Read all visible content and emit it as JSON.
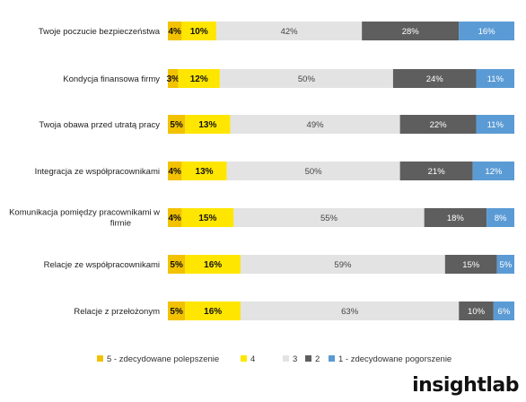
{
  "chart_data": {
    "type": "bar",
    "orientation": "horizontal",
    "stacked": true,
    "xlim": [
      0,
      100
    ],
    "legend_position": "bottom",
    "categories": [
      "Twoje poczucie bezpieczeństwa",
      "Kondycja finansowa firmy",
      "Twoja obawa przed utratą pracy",
      "Integracja ze współpracownikami",
      "Komunikacja pomiędzy pracownikami w firmie",
      "Relacje ze współpracownikami",
      "Relacje z przełożonym"
    ],
    "series": [
      {
        "name": "5 - zdecydowane polepszenie",
        "color": "#f2c200",
        "values": [
          4,
          3,
          5,
          4,
          4,
          5,
          5
        ]
      },
      {
        "name": "4",
        "color": "#ffe600",
        "values": [
          10,
          12,
          13,
          13,
          15,
          16,
          16
        ]
      },
      {
        "name": "3",
        "color": "#e3e3e3",
        "values": [
          42,
          50,
          49,
          50,
          55,
          59,
          63
        ]
      },
      {
        "name": "2",
        "color": "#5e5e5e",
        "values": [
          28,
          24,
          22,
          21,
          18,
          15,
          10
        ]
      },
      {
        "name": "1 - zdecydowane pogorszenie",
        "color": "#5b9bd5",
        "values": [
          16,
          11,
          11,
          12,
          8,
          5,
          6
        ]
      }
    ],
    "data_labels": [
      [
        "4%",
        "10%",
        "42%",
        "28%",
        "16%"
      ],
      [
        "3%",
        "12%",
        "50%",
        "24%",
        "11%"
      ],
      [
        "5%",
        "13%",
        "49%",
        "22%",
        "11%"
      ],
      [
        "4%",
        "13%",
        "50%",
        "21%",
        "12%"
      ],
      [
        "4%",
        "15%",
        "55%",
        "18%",
        "8%"
      ],
      [
        "5%",
        "16%",
        "59%",
        "15%",
        "5%"
      ],
      [
        "5%",
        "16%",
        "63%",
        "10%",
        "6%"
      ]
    ]
  },
  "brand": {
    "main": "insight",
    "sub": "lab"
  }
}
